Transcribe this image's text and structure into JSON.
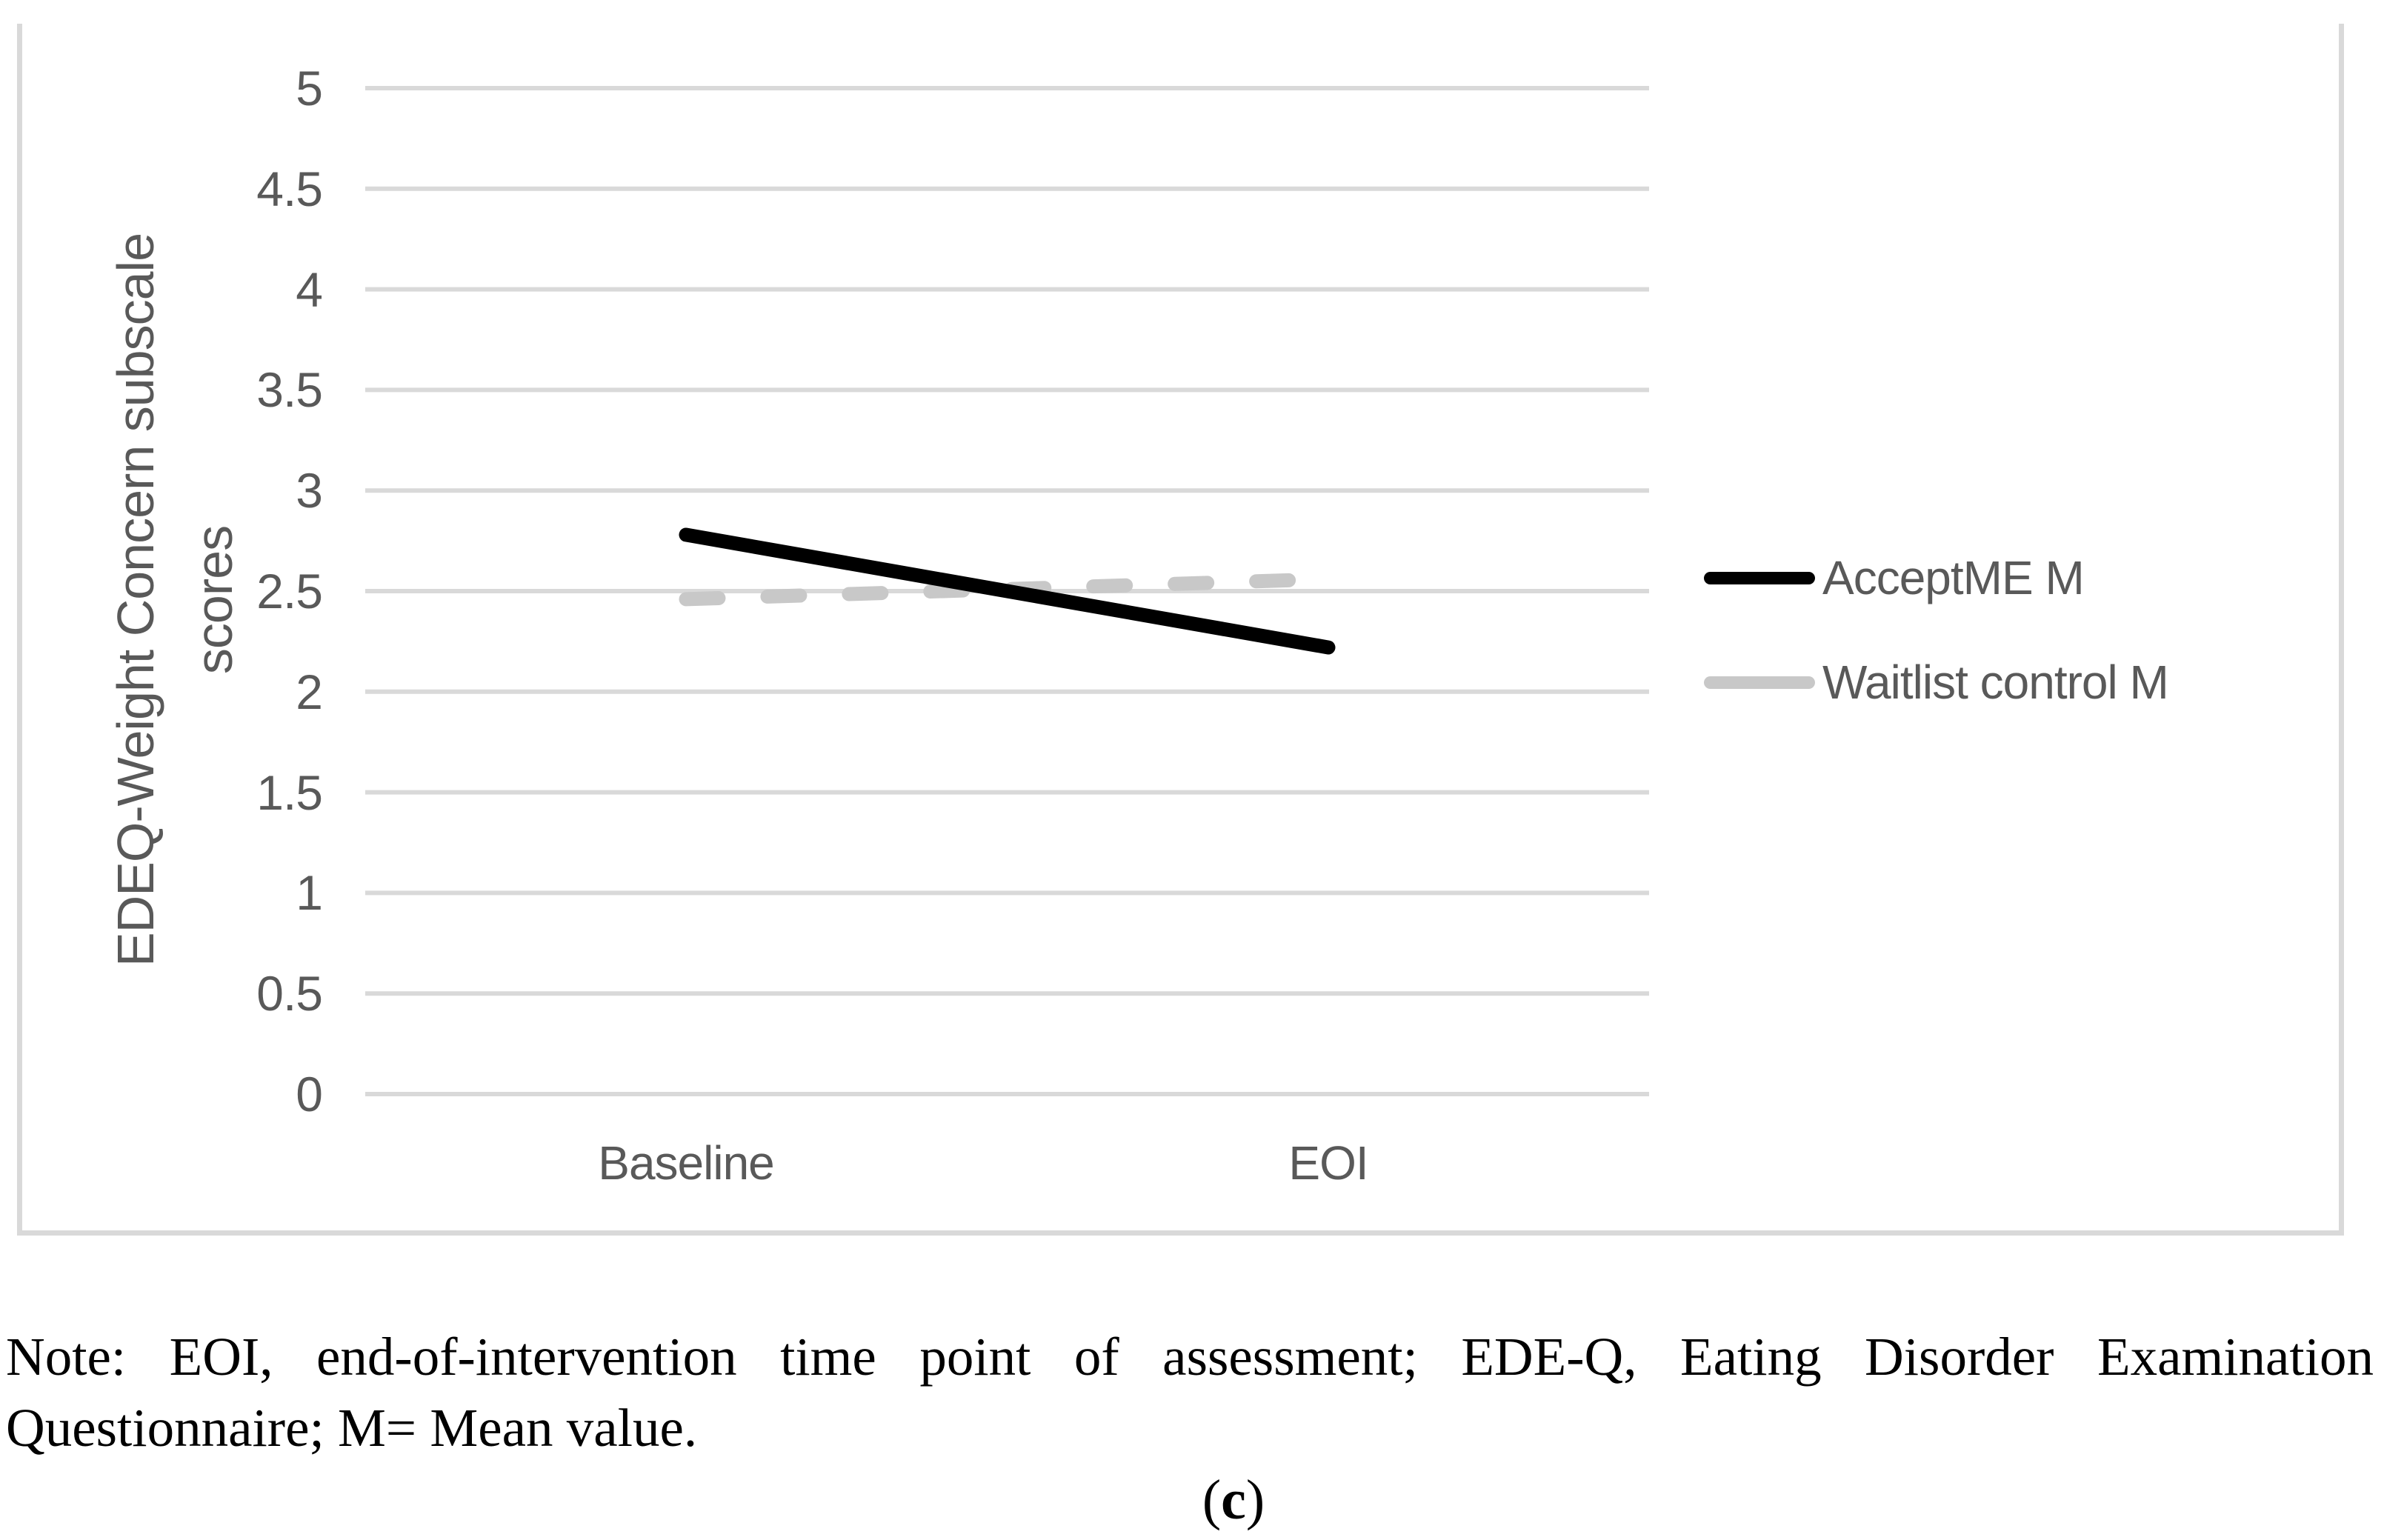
{
  "chart_data": {
    "type": "line",
    "categories": [
      "Baseline",
      "EOI"
    ],
    "series": [
      {
        "name": "AcceptME M",
        "values": [
          2.78,
          2.22
        ],
        "color": "#000000",
        "style": "solid"
      },
      {
        "name": "Waitlist control M",
        "values": [
          2.46,
          2.56
        ],
        "color": "#c8c8c8",
        "style": "dashed"
      }
    ],
    "title": "",
    "xlabel": "",
    "ylabel_line1": "EDEQ-Weight Concern subscale",
    "ylabel_line2": "scores",
    "ylim": [
      0,
      5
    ],
    "yticks": [
      {
        "label": "5",
        "value": 5
      },
      {
        "label": "4.5",
        "value": 4.5
      },
      {
        "label": "4",
        "value": 4
      },
      {
        "label": "3.5",
        "value": 3.5
      },
      {
        "label": "3",
        "value": 3
      },
      {
        "label": "2.5",
        "value": 2.5
      },
      {
        "label": "2",
        "value": 2
      },
      {
        "label": "1.5",
        "value": 1.5
      },
      {
        "label": "1",
        "value": 1
      },
      {
        "label": "0.5",
        "value": 0.5
      },
      {
        "label": "0",
        "value": 0
      }
    ],
    "grid": true,
    "legend_position": "right",
    "colors": {
      "gridline": "#d9d9d9",
      "frame": "#d9d9d9",
      "axis_text": "#595959",
      "note_text": "#000000"
    }
  },
  "note": {
    "line1": "Note: EOI, end-of-intervention time point of assessment; EDE-Q, Eating Disorder Examination",
    "line2": "Questionnaire; M= Mean value."
  },
  "caption": {
    "prefix": "(",
    "letter": "c",
    "suffix": ")"
  }
}
